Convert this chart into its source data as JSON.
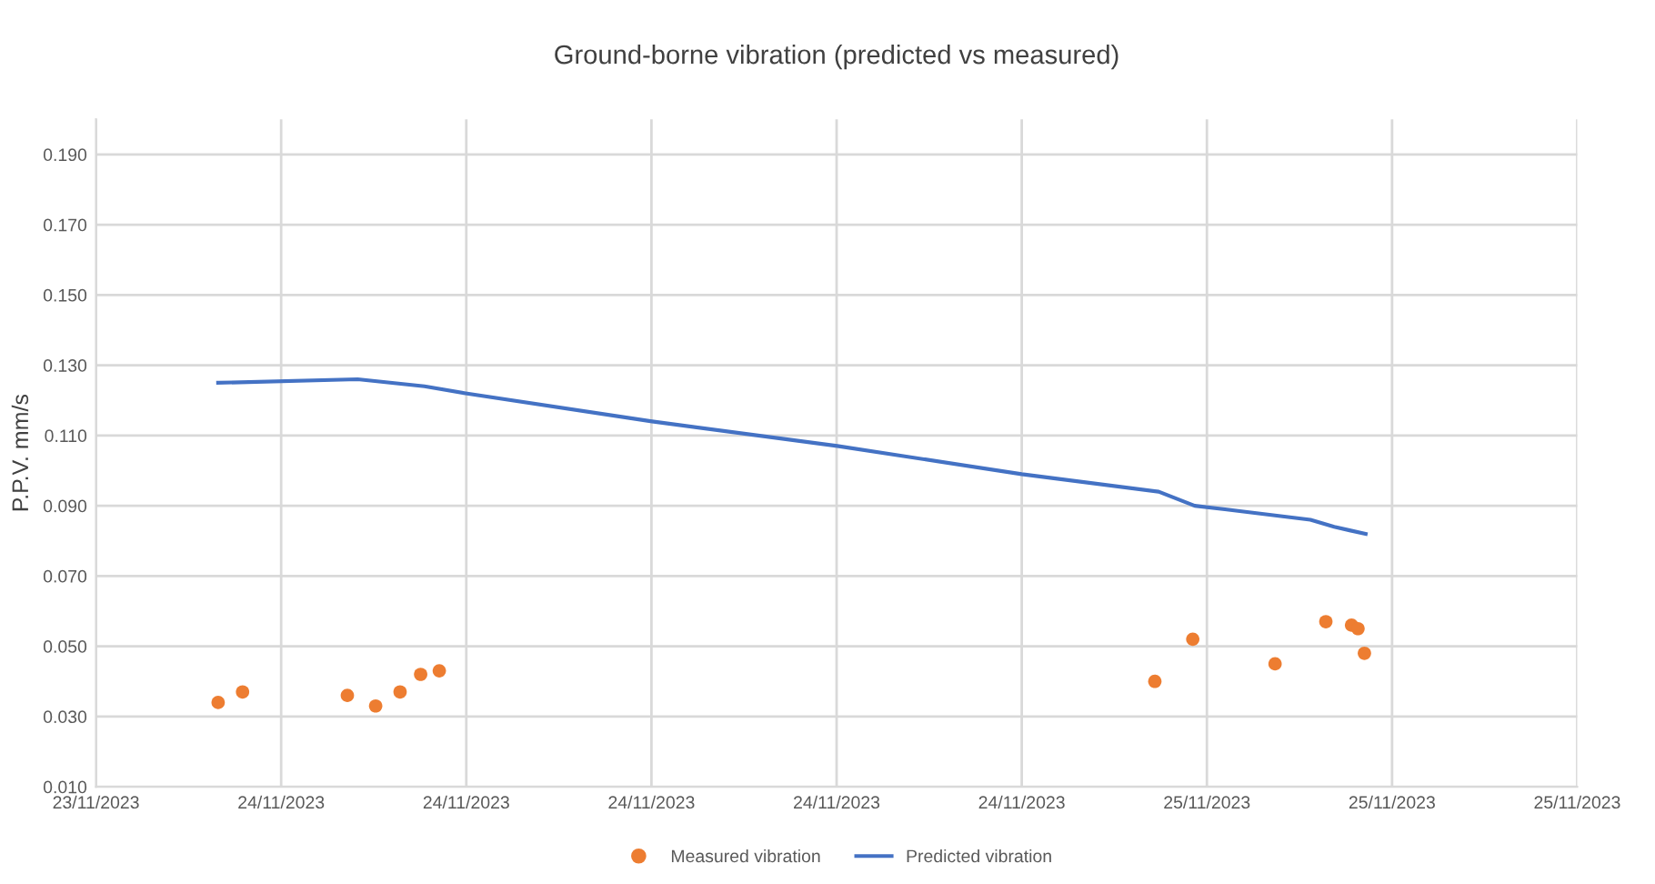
{
  "chart_data": {
    "type": "scatter",
    "title": "Ground-borne vibration (predicted vs measured)",
    "ylabel": "P.P.V. mm/s",
    "series": [
      {
        "name": "Measured vibration",
        "color": "#ed7d31",
        "marker": "circle",
        "x": [
          "2023-11-24T00:46",
          "2023-11-24T01:24",
          "2023-11-24T04:07",
          "2023-11-24T04:51",
          "2023-11-24T05:29",
          "2023-11-24T06:01",
          "2023-11-24T06:30",
          "2023-11-25T01:03",
          "2023-11-25T02:02",
          "2023-11-25T04:10",
          "2023-11-25T05:29",
          "2023-11-25T06:09",
          "2023-11-25T06:19",
          "2023-11-25T06:29"
        ],
        "values": [
          0.034,
          0.037,
          0.036,
          0.033,
          0.037,
          0.042,
          0.043,
          0.04,
          0.052,
          0.045,
          0.057,
          0.056,
          0.055,
          0.048
        ]
      },
      {
        "name": "Predicted vibration",
        "type": "line",
        "color": "#4472c4",
        "marker": "none",
        "line_style": "solid",
        "x": [
          "2023-11-24T00:46",
          "2023-11-24T04:23",
          "2023-11-24T06:07",
          "2023-11-24T07:11",
          "2023-11-24T12:01",
          "2023-11-24T16:49",
          "2023-11-24T21:36",
          "2023-11-25T01:09",
          "2023-11-25T02:05",
          "2023-11-25T02:52",
          "2023-11-25T05:05",
          "2023-11-25T05:42",
          "2023-11-25T06:06",
          "2023-11-25T06:31"
        ],
        "values": [
          0.125,
          0.126,
          0.124,
          0.122,
          0.114,
          0.107,
          0.099,
          0.094,
          0.09,
          0.089,
          0.086,
          0.084,
          0.083,
          0.082
        ]
      }
    ],
    "xlim": [
      "2023-11-23T21:36",
      "2023-11-25T12:00"
    ],
    "xticks": [
      {
        "value": "2023-11-23T21:36",
        "label": "23/11/2023"
      },
      {
        "value": "2023-11-24T02:24",
        "label": "24/11/2023"
      },
      {
        "value": "2023-11-24T07:12",
        "label": "24/11/2023"
      },
      {
        "value": "2023-11-24T12:00",
        "label": "24/11/2023"
      },
      {
        "value": "2023-11-24T16:48",
        "label": "24/11/2023"
      },
      {
        "value": "2023-11-24T21:36",
        "label": "24/11/2023"
      },
      {
        "value": "2023-11-25T02:24",
        "label": "25/11/2023"
      },
      {
        "value": "2023-11-25T07:12",
        "label": "25/11/2023"
      },
      {
        "value": "2023-11-25T12:00",
        "label": "25/11/2023"
      }
    ],
    "ylim": [
      0.01,
      0.2
    ],
    "yticks": [
      {
        "value": 0.01,
        "label": "0.010"
      },
      {
        "value": 0.03,
        "label": "0.030"
      },
      {
        "value": 0.05,
        "label": "0.050"
      },
      {
        "value": 0.07,
        "label": "0.070"
      },
      {
        "value": 0.09,
        "label": "0.090"
      },
      {
        "value": 0.11,
        "label": "0.110"
      },
      {
        "value": 0.13,
        "label": "0.130"
      },
      {
        "value": 0.15,
        "label": "0.150"
      },
      {
        "value": 0.17,
        "label": "0.170"
      },
      {
        "value": 0.19,
        "label": "0.190"
      }
    ],
    "grid": true,
    "legend": "bottom"
  }
}
